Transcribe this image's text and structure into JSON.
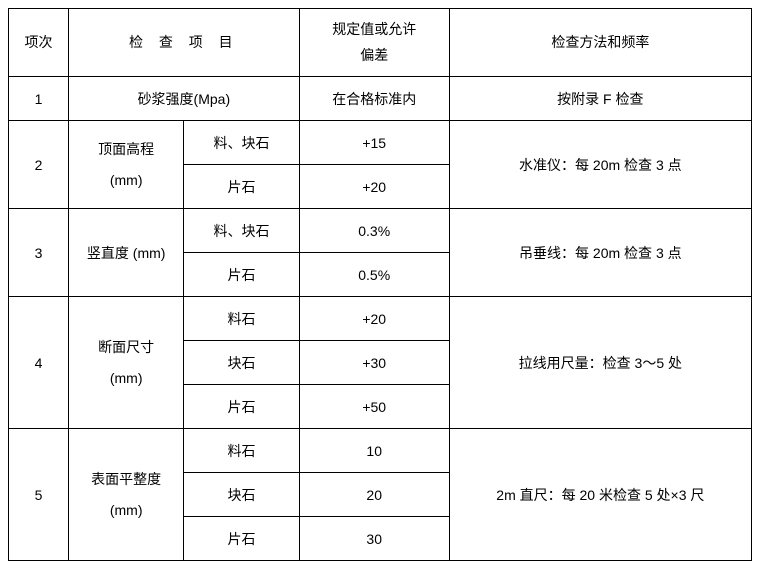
{
  "table": {
    "headers": {
      "idx": "项次",
      "item": "检 查 项 目",
      "value": "规定值或允许\n偏差",
      "method": "检查方法和频率"
    },
    "rows": {
      "r1": {
        "idx": "1",
        "item": "砂浆强度(Mpa)",
        "value": "在合格标准内",
        "method": "按附录 F 检查"
      },
      "r2": {
        "idx": "2",
        "item_a": "顶面高程\n(mm)",
        "sub1_b": "料、块石",
        "sub1_v": "+15",
        "sub2_b": "片石",
        "sub2_v": "+20",
        "method": "水准仪：每 20m 检查 3 点"
      },
      "r3": {
        "idx": "3",
        "item_a": "竖直度 (mm)",
        "sub1_b": "料、块石",
        "sub1_v": "0.3%",
        "sub2_b": "片石",
        "sub2_v": "0.5%",
        "method": "吊垂线：每 20m 检查 3 点"
      },
      "r4": {
        "idx": "4",
        "item_a": "断面尺寸\n(mm)",
        "sub1_b": "料石",
        "sub1_v": "+20",
        "sub2_b": "块石",
        "sub2_v": "+30",
        "sub3_b": "片石",
        "sub3_v": "+50",
        "method": "拉线用尺量：检查 3～5 处"
      },
      "r5": {
        "idx": "5",
        "item_a": "表面平整度\n(mm)",
        "sub1_b": "料石",
        "sub1_v": "10",
        "sub2_b": "块石",
        "sub2_v": "20",
        "sub3_b": "片石",
        "sub3_v": "30",
        "method": "2m 直尺：每 20 米检查 5 处×3 尺"
      }
    }
  }
}
